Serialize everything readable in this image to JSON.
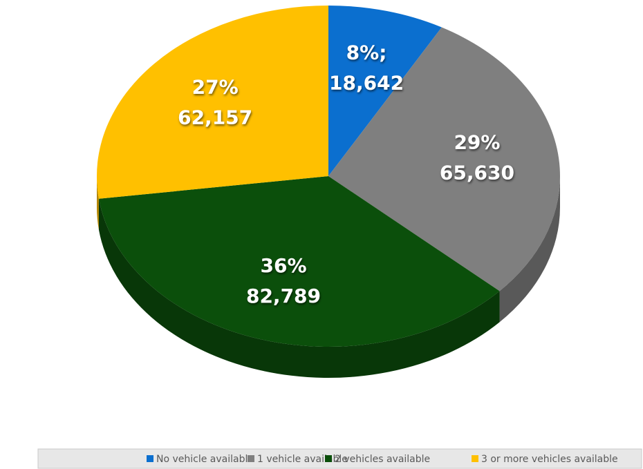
{
  "chart_data": {
    "type": "pie",
    "categories": [
      "No vehicle available",
      "1 vehicle available",
      "2 vehicles available",
      "3 or more vehicles available"
    ],
    "values": [
      18642,
      65630,
      82789,
      62157
    ],
    "value_labels": [
      [
        "8%;",
        "18,642"
      ],
      [
        "29%",
        "65,630"
      ],
      [
        "36%",
        "82,789"
      ],
      [
        "27%",
        "62,157"
      ]
    ],
    "colors": [
      "#0b6fcf",
      "#7f7f7f",
      "#0b4f0b",
      "#ffc000"
    ],
    "legend": "bottom"
  }
}
